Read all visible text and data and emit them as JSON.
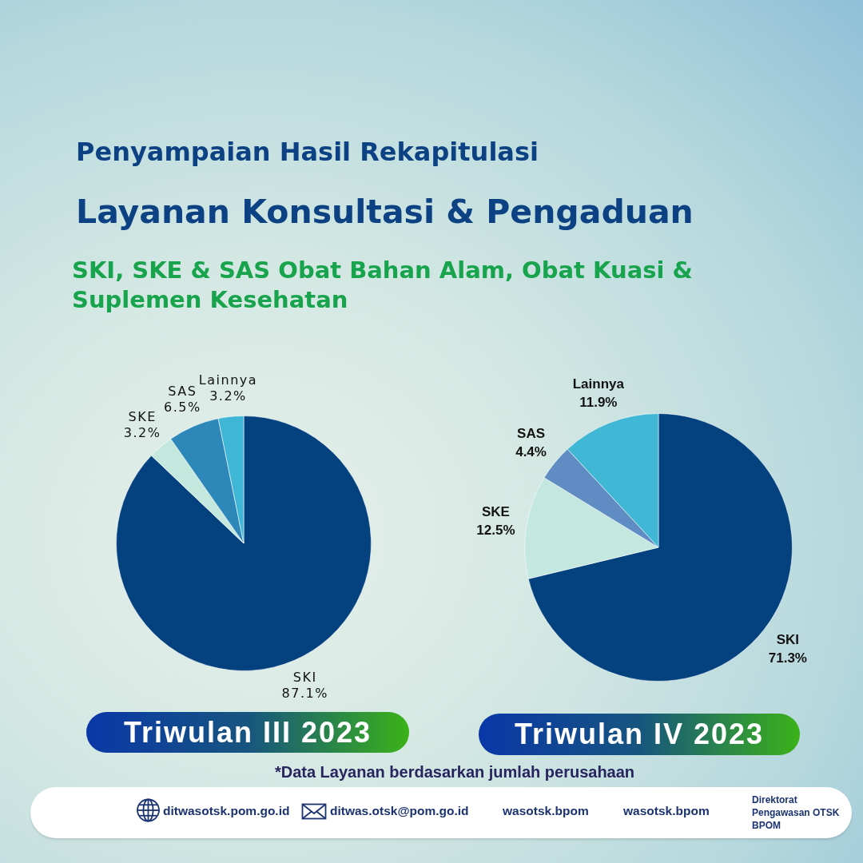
{
  "chart_data": [
    {
      "type": "other",
      "title": "Penyampaian Hasil Rekapitulasi",
      "subtitle": "Layanan Konsultasi & Pengaduan",
      "annotations": [
        "SKI, SKE & SAS Obat Bahan Alam, Obat Kuasi & Suplemen Kesehatan"
      ]
    },
    {
      "type": "pie",
      "title": "Triwulan III 2023",
      "categories": [
        "SKI",
        "SKE",
        "SAS",
        "Lainnya"
      ],
      "values": [
        87.1,
        3.2,
        6.5,
        3.2
      ],
      "colors": [
        "#03427f",
        "#c5e8de",
        "#2e87b9",
        "#3fb6d6"
      ],
      "value_labels": [
        "87.1%",
        "3.2%",
        "6.5%",
        "3.2%"
      ]
    },
    {
      "type": "pie",
      "title": "Triwulan IV 2023",
      "categories": [
        "SKI",
        "SKE",
        "SAS",
        "Lainnya"
      ],
      "values": [
        71.3,
        12.5,
        4.4,
        11.9
      ],
      "colors": [
        "#03427f",
        "#c4e8df",
        "#5f8cc3",
        "#41b7d6"
      ],
      "value_labels": [
        "71.3%",
        "12.5%",
        "4.4%",
        "11.9%"
      ]
    },
    {
      "type": "other",
      "annotations": [
        "*Data Layanan berdasarkan jumlah perusahaan",
        "ditwasotsk.pom.go.id",
        "ditwas.otsk@pom.go.id",
        "wasotsk.bpom",
        "wasotsk.bpom",
        "Direktorat Pengawasan OTSK BPOM"
      ]
    }
  ]
}
